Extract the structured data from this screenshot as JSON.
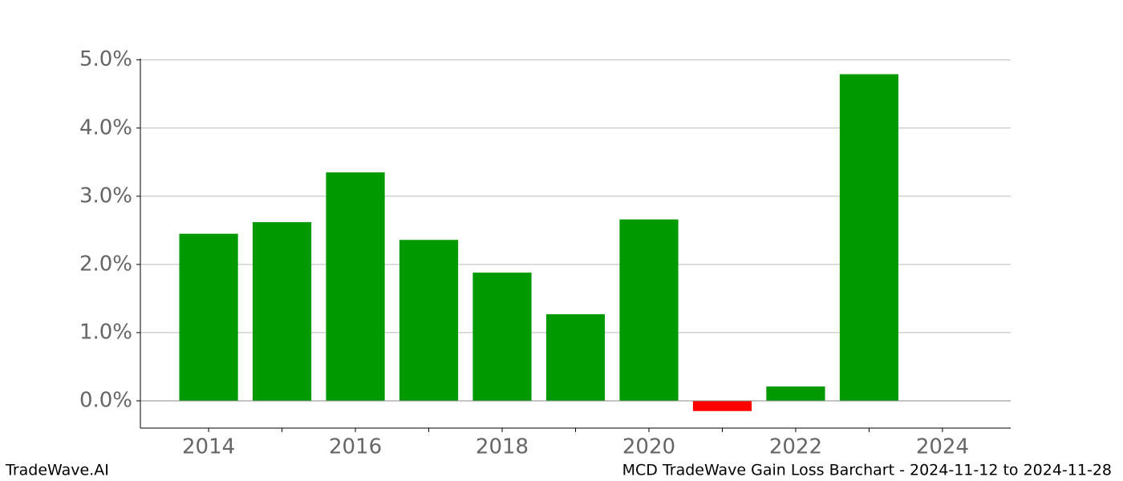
{
  "chart_data": {
    "type": "bar",
    "title": "MCD TradeWave Gain Loss Barchart - 2024-11-12 to 2024-11-28",
    "brand": "TradeWave.AI",
    "x": [
      2014,
      2015,
      2016,
      2017,
      2018,
      2019,
      2020,
      2021,
      2022,
      2023
    ],
    "values": [
      2.45,
      2.62,
      3.35,
      2.36,
      1.88,
      1.27,
      2.66,
      -0.15,
      0.21,
      4.79
    ],
    "color_positive": "#009900",
    "color_negative": "#ff0000",
    "xlim": [
      2013.07,
      2024.93
    ],
    "xticks": [
      2014,
      2016,
      2018,
      2020,
      2022,
      2024
    ],
    "xminor_ticks": [
      2015,
      2017,
      2019,
      2021,
      2023
    ],
    "ylim": [
      -0.4,
      5.02
    ],
    "yticks": [
      {
        "value": 0,
        "label": "0.0%"
      },
      {
        "value": 1,
        "label": "1.0%"
      },
      {
        "value": 2,
        "label": "2.0%"
      },
      {
        "value": 3,
        "label": "3.0%"
      },
      {
        "value": 4,
        "label": "4.0%"
      },
      {
        "value": 5,
        "label": "5.0%"
      }
    ],
    "grid": true
  }
}
